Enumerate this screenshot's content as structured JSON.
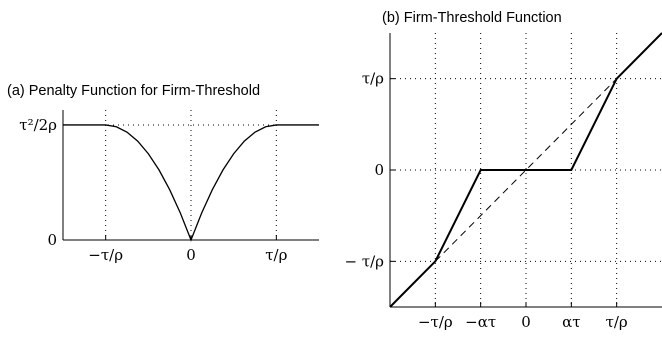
{
  "chart_data": [
    {
      "type": "line",
      "title": "(a) Penalty Function for Firm-Threshold",
      "xlabel": "",
      "ylabel": "",
      "x_ticks": [
        {
          "value": -2,
          "label": "−τ/ρ"
        },
        {
          "value": 0,
          "label": "0"
        },
        {
          "value": 2,
          "label": "τ/ρ"
        }
      ],
      "y_ticks": [
        {
          "value": 0,
          "label": "0"
        },
        {
          "value": 1,
          "label": "τ²/2ρ"
        }
      ],
      "xlim": [
        -3,
        3
      ],
      "ylim": [
        0,
        1.13
      ],
      "grid": true,
      "series": [
        {
          "x": [
            -3,
            -2.75,
            -2.5,
            -2.25,
            -2,
            -1.75,
            -1.5,
            -1.25,
            -1,
            -0.75,
            -0.5,
            -0.25,
            0,
            0.25,
            0.5,
            0.75,
            1,
            1.25,
            1.5,
            1.75,
            2,
            2.25,
            2.5,
            2.75,
            3
          ],
          "y": [
            1,
            1,
            1,
            1,
            1,
            0.9844,
            0.9375,
            0.8594,
            0.75,
            0.6094,
            0.4375,
            0.2344,
            0,
            0.2344,
            0.4375,
            0.6094,
            0.75,
            0.8594,
            0.9375,
            0.9844,
            1,
            1,
            1,
            1,
            1
          ]
        }
      ]
    },
    {
      "type": "line",
      "title": "(b) Firm-Threshold Function",
      "xlabel": "",
      "ylabel": "",
      "x_ticks": [
        {
          "value": -2,
          "label": "−τ/ρ"
        },
        {
          "value": -1,
          "label": "−ατ"
        },
        {
          "value": 0,
          "label": "0"
        },
        {
          "value": 1,
          "label": "ατ"
        },
        {
          "value": 2,
          "label": "τ/ρ"
        }
      ],
      "y_ticks": [
        {
          "value": -2,
          "label": "− τ/ρ"
        },
        {
          "value": 0,
          "label": "0"
        },
        {
          "value": 2,
          "label": "τ/ρ"
        }
      ],
      "xlim": [
        -3,
        3
      ],
      "ylim": [
        -3,
        3
      ],
      "grid": true,
      "series": [
        {
          "x": [
            -3,
            -2,
            -1,
            1,
            2,
            3
          ],
          "y": [
            -3,
            -2,
            0,
            0,
            2,
            3
          ],
          "style": "solid"
        },
        {
          "x": [
            -2,
            2
          ],
          "y": [
            -2,
            2
          ],
          "style": "dashed"
        }
      ]
    }
  ]
}
